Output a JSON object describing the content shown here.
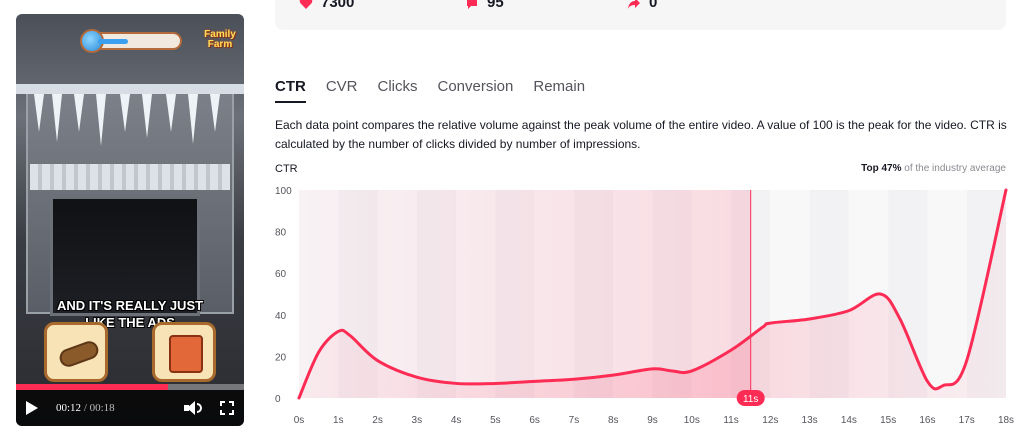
{
  "video": {
    "caption_line1": "AND IT'S REALLY JUST",
    "caption_line2": "LIKE THE ADS",
    "logo_line1": "Family",
    "logo_line2": "Farm",
    "current_time": "00:12",
    "duration": "/ 00:18",
    "progress_fraction": 0.667
  },
  "stats": [
    {
      "icon": "heart-icon",
      "value": "7300",
      "color": "#fe2c55"
    },
    {
      "icon": "comment-icon",
      "value": "95",
      "color": "#fe2c55"
    },
    {
      "icon": "share-icon",
      "value": "0",
      "color": "#fe2c55"
    }
  ],
  "tabs": [
    {
      "label": "CTR",
      "active": true
    },
    {
      "label": "CVR",
      "active": false
    },
    {
      "label": "Clicks",
      "active": false
    },
    {
      "label": "Conversion",
      "active": false
    },
    {
      "label": "Remain",
      "active": false
    }
  ],
  "description": "Each data point compares the relative volume against the peak volume of the entire video. A value of 100 is the peak for the video. CTR is calculated by the number of clicks divided by number of impressions.",
  "metric_label": "CTR",
  "industry": {
    "top_label": "Top 47%",
    "suffix": " of the industry average"
  },
  "chart_data": {
    "type": "area",
    "title": "",
    "ylabel": "CTR",
    "xlabel": "",
    "x": [
      0,
      0.5,
      1,
      1.3,
      2,
      3,
      4,
      5,
      6,
      7,
      8,
      9,
      9.5,
      10,
      11,
      11.8,
      12,
      13,
      14,
      14.8,
      15.3,
      16,
      16.4,
      17,
      18
    ],
    "values": [
      0,
      22,
      32,
      30,
      18,
      10,
      7,
      7,
      8,
      9,
      11,
      14,
      13,
      13,
      23,
      34,
      36,
      38,
      42,
      50,
      38,
      8,
      6,
      18,
      100
    ],
    "x_tick_labels": [
      "0s",
      "1s",
      "2s",
      "3s",
      "4s",
      "5s",
      "6s",
      "7s",
      "8s",
      "9s",
      "10s",
      "11s",
      "12s",
      "13s",
      "14s",
      "15s",
      "16s",
      "17s",
      "18s"
    ],
    "y_ticks": [
      0,
      20,
      40,
      60,
      80,
      100
    ],
    "ylim": [
      0,
      100
    ],
    "xlim": [
      0,
      18
    ],
    "current_marker": {
      "x": 11.5,
      "label": "11s"
    },
    "line_color": "#fe2c55",
    "fill_color": "#fe2c55"
  }
}
